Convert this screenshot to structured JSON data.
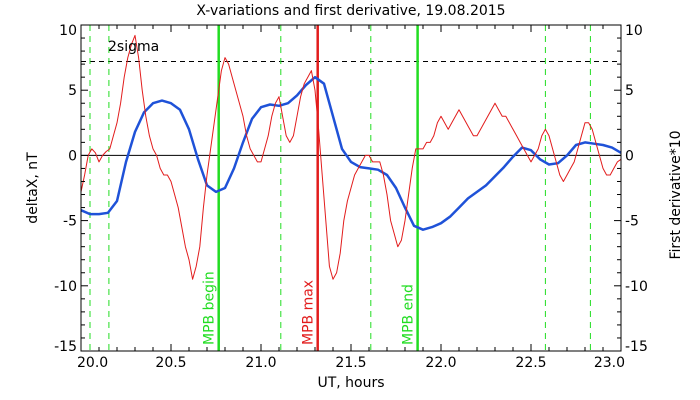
{
  "chart_data": {
    "type": "line",
    "title": "X-variations and first derivative, 19.08.2015",
    "xlabel": "UT, hours",
    "ylabel_left": "deltaX, nT",
    "ylabel_right": "First derivative*10",
    "xlim": [
      20.0,
      23.0
    ],
    "ylim": [
      -15,
      10
    ],
    "xticks": [
      "20.0",
      "20.5",
      "21.0",
      "21.5",
      "22.0",
      "22.5",
      "23.0"
    ],
    "yticks": [
      "10",
      "5",
      "0",
      "-5",
      "-10",
      "-15"
    ],
    "colors": {
      "left_axis_label": "#1f52d8",
      "right_axis_label": "#e21c1c",
      "deltaX": "#1f52d8",
      "derivative": "#e21c1c",
      "mpb_boundary": "#22dd22",
      "mpb_max": "#e21c1c"
    },
    "threshold": {
      "value": 7.2,
      "label": "2sigma"
    },
    "markers": [
      {
        "x": 20.765,
        "label": "MPB begin",
        "kind": "boundary"
      },
      {
        "x": 21.315,
        "label": "MPB max",
        "kind": "max"
      },
      {
        "x": 21.87,
        "label": "MPB end",
        "kind": "boundary"
      }
    ],
    "dashed_verticals": [
      20.05,
      20.155,
      21.11,
      21.61,
      22.58,
      22.83
    ],
    "series": [
      {
        "name": "deltaX",
        "x": [
          20.0,
          20.05,
          20.1,
          20.15,
          20.2,
          20.25,
          20.3,
          20.35,
          20.4,
          20.45,
          20.5,
          20.55,
          20.6,
          20.65,
          20.7,
          20.75,
          20.8,
          20.85,
          20.9,
          20.95,
          21.0,
          21.05,
          21.1,
          21.15,
          21.2,
          21.25,
          21.3,
          21.35,
          21.4,
          21.45,
          21.5,
          21.55,
          21.6,
          21.65,
          21.7,
          21.75,
          21.8,
          21.85,
          21.9,
          21.95,
          22.0,
          22.05,
          22.1,
          22.15,
          22.2,
          22.25,
          22.3,
          22.35,
          22.4,
          22.45,
          22.5,
          22.55,
          22.6,
          22.65,
          22.7,
          22.75,
          22.8,
          22.85,
          22.9,
          22.95,
          23.0
        ],
        "values": [
          -4.2,
          -4.5,
          -4.5,
          -4.4,
          -3.5,
          -0.5,
          1.8,
          3.3,
          4.0,
          4.2,
          4.0,
          3.5,
          2.0,
          -0.3,
          -2.3,
          -2.8,
          -2.5,
          -1.0,
          1.0,
          2.8,
          3.7,
          3.9,
          3.8,
          4.0,
          4.6,
          5.4,
          6.0,
          5.5,
          3.0,
          0.5,
          -0.5,
          -0.9,
          -1.0,
          -1.1,
          -1.5,
          -2.5,
          -4.0,
          -5.4,
          -5.7,
          -5.5,
          -5.2,
          -4.7,
          -4.0,
          -3.3,
          -2.8,
          -2.3,
          -1.6,
          -0.9,
          -0.1,
          0.6,
          0.4,
          -0.3,
          -0.7,
          -0.6,
          0.0,
          0.8,
          1.0,
          0.9,
          0.8,
          0.6,
          0.2
        ]
      },
      {
        "name": "First derivative*10",
        "x": [
          20.0,
          20.02,
          20.04,
          20.06,
          20.08,
          20.1,
          20.12,
          20.14,
          20.16,
          20.18,
          20.2,
          20.22,
          20.24,
          20.26,
          20.28,
          20.3,
          20.32,
          20.34,
          20.36,
          20.38,
          20.4,
          20.42,
          20.44,
          20.46,
          20.48,
          20.5,
          20.52,
          20.54,
          20.56,
          20.58,
          20.6,
          20.62,
          20.64,
          20.66,
          20.68,
          20.7,
          20.72,
          20.74,
          20.76,
          20.78,
          20.8,
          20.82,
          20.84,
          20.86,
          20.88,
          20.9,
          20.92,
          20.94,
          20.96,
          20.98,
          21.0,
          21.02,
          21.04,
          21.06,
          21.08,
          21.1,
          21.12,
          21.14,
          21.16,
          21.18,
          21.2,
          21.22,
          21.24,
          21.26,
          21.28,
          21.3,
          21.32,
          21.34,
          21.36,
          21.38,
          21.4,
          21.42,
          21.44,
          21.46,
          21.48,
          21.5,
          21.52,
          21.54,
          21.56,
          21.58,
          21.6,
          21.62,
          21.64,
          21.66,
          21.68,
          21.7,
          21.72,
          21.74,
          21.76,
          21.78,
          21.8,
          21.82,
          21.84,
          21.86,
          21.88,
          21.9,
          21.92,
          21.94,
          21.96,
          21.98,
          22.0,
          22.02,
          22.04,
          22.06,
          22.08,
          22.1,
          22.12,
          22.14,
          22.16,
          22.18,
          22.2,
          22.22,
          22.24,
          22.26,
          22.28,
          22.3,
          22.32,
          22.34,
          22.36,
          22.38,
          22.4,
          22.42,
          22.44,
          22.46,
          22.48,
          22.5,
          22.52,
          22.54,
          22.56,
          22.58,
          22.6,
          22.62,
          22.64,
          22.66,
          22.68,
          22.7,
          22.72,
          22.74,
          22.76,
          22.78,
          22.8,
          22.82,
          22.84,
          22.86,
          22.88,
          22.9,
          22.92,
          22.94,
          22.96,
          22.98,
          23.0
        ],
        "values": [
          -2.8,
          -1.5,
          0.0,
          0.5,
          0.2,
          -0.5,
          0.0,
          0.3,
          0.5,
          1.5,
          2.5,
          4.0,
          6.0,
          7.5,
          8.5,
          9.2,
          7.5,
          5.0,
          3.0,
          1.5,
          0.5,
          0.0,
          -1.0,
          -1.5,
          -1.5,
          -2.0,
          -3.0,
          -4.0,
          -5.5,
          -7.0,
          -8.0,
          -9.5,
          -8.5,
          -7.0,
          -4.0,
          -1.5,
          0.5,
          2.5,
          4.5,
          6.5,
          7.5,
          7.0,
          6.0,
          5.0,
          4.0,
          3.0,
          1.5,
          0.5,
          0.0,
          -0.5,
          -0.5,
          0.5,
          1.5,
          3.0,
          4.0,
          4.5,
          3.0,
          1.5,
          1.0,
          1.5,
          3.0,
          4.5,
          5.5,
          6.0,
          6.5,
          5.0,
          2.0,
          -1.5,
          -5.0,
          -8.5,
          -9.5,
          -9.0,
          -7.5,
          -5.0,
          -3.5,
          -2.5,
          -1.5,
          -1.0,
          -0.5,
          0.0,
          0.0,
          -0.5,
          -0.5,
          -0.5,
          -1.5,
          -3.0,
          -5.0,
          -6.0,
          -7.0,
          -6.5,
          -5.0,
          -3.0,
          -1.0,
          0.5,
          0.5,
          0.5,
          1.0,
          1.0,
          1.5,
          2.5,
          3.0,
          2.5,
          2.0,
          2.5,
          3.0,
          3.5,
          3.0,
          2.5,
          2.0,
          1.5,
          1.5,
          2.0,
          2.5,
          3.0,
          3.5,
          4.0,
          3.5,
          3.0,
          3.0,
          2.5,
          2.0,
          1.5,
          1.0,
          0.5,
          0.0,
          -0.5,
          0.0,
          0.5,
          1.5,
          2.0,
          1.5,
          0.5,
          -0.5,
          -1.5,
          -2.0,
          -1.5,
          -1.0,
          -0.5,
          0.5,
          1.5,
          2.5,
          2.5,
          2.0,
          1.0,
          0.0,
          -1.0,
          -1.5,
          -1.5,
          -1.0,
          -0.5,
          -0.3
        ]
      }
    ]
  }
}
